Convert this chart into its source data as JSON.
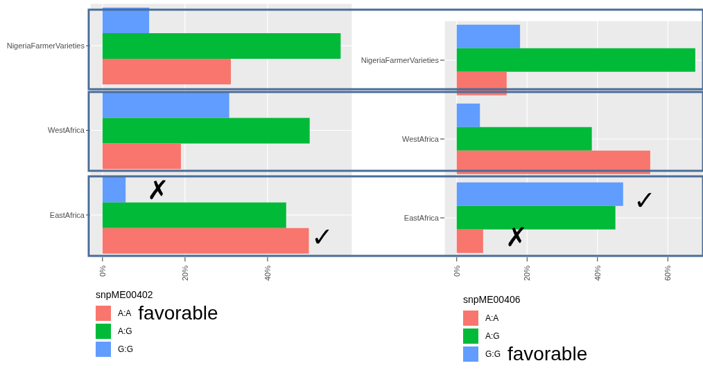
{
  "chart_data": [
    {
      "type": "bar",
      "orientation": "horizontal",
      "categories": [
        "NigeriaFarmerVarieties",
        "WestAfrica",
        "EastAfrica"
      ],
      "legend_title": "snpME00402",
      "legend": "bottom",
      "grid": true,
      "series": [
        {
          "name": "A:A",
          "color": "#f8766d",
          "values": [
            31.1,
            19.0,
            50.0
          ]
        },
        {
          "name": "A:G",
          "color": "#00ba38",
          "values": [
            57.7,
            50.2,
            44.5
          ]
        },
        {
          "name": "G:G",
          "color": "#619cff",
          "values": [
            11.3,
            30.7,
            5.6
          ]
        }
      ],
      "xlim": [
        -3,
        60.5
      ],
      "xticks": [
        {
          "value": 0,
          "label": "0%"
        },
        {
          "value": 20,
          "label": "20%"
        },
        {
          "value": 40,
          "label": "40%"
        }
      ],
      "annotations": [
        "favorable",
        "✗",
        "✓"
      ]
    },
    {
      "type": "bar",
      "orientation": "horizontal",
      "categories": [
        "NigeriaFarmerVarieties",
        "WestAfrica",
        "EastAfrica"
      ],
      "legend_title": "snpME00406",
      "legend": "bottom",
      "grid": true,
      "series": [
        {
          "name": "A:A",
          "color": "#f8766d",
          "values": [
            14.2,
            55.0,
            7.5
          ]
        },
        {
          "name": "A:G",
          "color": "#00ba38",
          "values": [
            67.8,
            38.4,
            45.1
          ]
        },
        {
          "name": "G:G",
          "color": "#619cff",
          "values": [
            18.0,
            6.6,
            47.3
          ]
        }
      ],
      "xlim": [
        -3.5,
        70
      ],
      "xticks": [
        {
          "value": 0,
          "label": "0%"
        },
        {
          "value": 20,
          "label": "20%"
        },
        {
          "value": 40,
          "label": "40%"
        },
        {
          "value": 60,
          "label": "60%"
        }
      ],
      "annotations": [
        "favorable",
        "✓",
        "✗"
      ]
    }
  ]
}
